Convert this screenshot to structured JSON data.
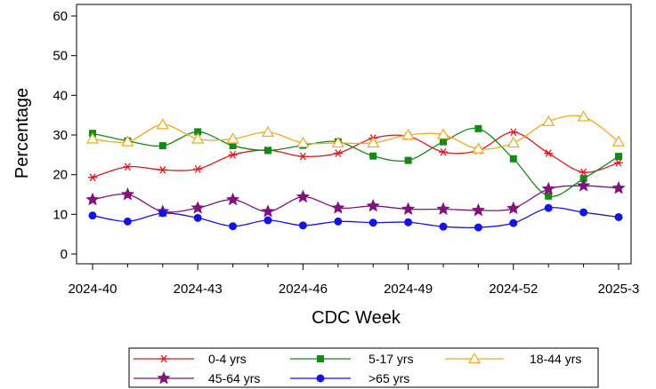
{
  "chart_data": {
    "type": "line",
    "title": "",
    "xlabel": "CDC Week",
    "ylabel": "Percentage",
    "ylim": [
      0,
      60
    ],
    "yticks": [
      0,
      10,
      20,
      30,
      40,
      50,
      60
    ],
    "x": [
      "2024-40",
      "2024-41",
      "2024-42",
      "2024-43",
      "2024-44",
      "2024-45",
      "2024-46",
      "2024-47",
      "2024-48",
      "2024-49",
      "2024-50",
      "2024-51",
      "2024-52",
      "2025-1",
      "2025-2",
      "2025-3"
    ],
    "xtick_labels": [
      "2024-40",
      "2024-43",
      "2024-46",
      "2024-49",
      "2024-52",
      "2025-3"
    ],
    "legend_position": "bottom",
    "grid": false,
    "series": [
      {
        "name": "0-4 yrs",
        "color": "#e8141c",
        "marker": "asterisk",
        "values": [
          19.3,
          22.0,
          21.2,
          21.4,
          25.0,
          26.2,
          24.6,
          25.4,
          29.2,
          29.7,
          25.7,
          26.1,
          30.7,
          25.4,
          20.6,
          23.0
        ]
      },
      {
        "name": "5-17 yrs",
        "color": "#138a13",
        "marker": "square",
        "values": [
          30.4,
          28.5,
          27.3,
          30.8,
          27.3,
          26.1,
          27.4,
          28.3,
          24.7,
          23.6,
          28.3,
          31.6,
          24.0,
          14.6,
          19.0,
          24.6
        ]
      },
      {
        "name": "18-44 yrs",
        "color": "#f2a81e",
        "marker": "triangle",
        "values": [
          29.0,
          28.3,
          32.6,
          29.0,
          29.0,
          30.7,
          28.0,
          28.0,
          28.0,
          30.0,
          30.1,
          26.5,
          28.0,
          33.4,
          34.6,
          28.3
        ]
      },
      {
        "name": "45-64 yrs",
        "color": "#80137e",
        "marker": "star",
        "values": [
          13.7,
          15.0,
          10.7,
          11.6,
          13.7,
          10.7,
          14.4,
          11.6,
          12.1,
          11.3,
          11.3,
          11.0,
          11.5,
          16.4,
          17.2,
          16.6
        ]
      },
      {
        "name": ">65 yrs",
        "color": "#1414e6",
        "marker": "circle",
        "values": [
          9.7,
          8.2,
          10.3,
          9.1,
          7.0,
          8.5,
          7.2,
          8.2,
          7.9,
          8.0,
          6.9,
          6.7,
          7.8,
          11.6,
          10.5,
          9.3
        ]
      }
    ]
  }
}
